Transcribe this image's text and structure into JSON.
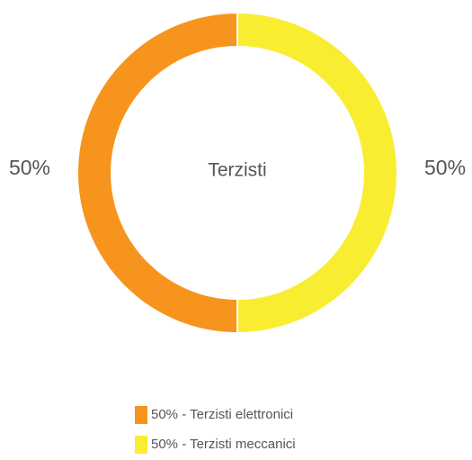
{
  "chart_data": {
    "type": "donut",
    "center_label": "Terzisti",
    "categories": [
      "50% - Terzisti elettronici",
      "50% - Terzisti meccanici"
    ],
    "values": [
      50,
      50
    ],
    "value_labels": [
      "50%",
      "50%"
    ],
    "colors": [
      "#f7941d",
      "#f9ed32"
    ],
    "legend": "bottom"
  }
}
